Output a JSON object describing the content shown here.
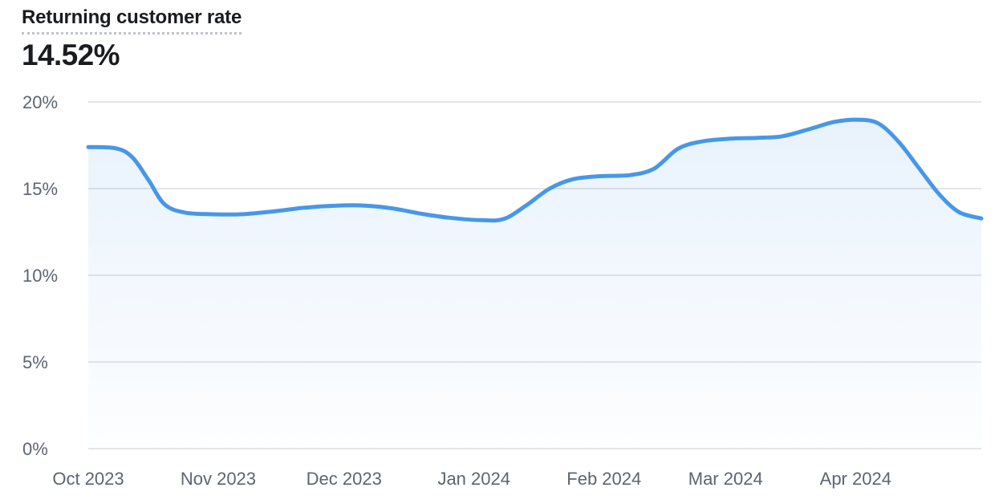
{
  "header": {
    "title": "Returning customer rate",
    "value": "14.52%"
  },
  "chart_data": {
    "type": "area",
    "title": "Returning customer rate",
    "current_value_label": "14.52%",
    "xlabel": "",
    "ylabel": "",
    "ylim": [
      0,
      20
    ],
    "grid": "horizontal-only",
    "legend": "none",
    "yticks": [
      {
        "value": 20,
        "label": "20%"
      },
      {
        "value": 15,
        "label": "15%"
      },
      {
        "value": 10,
        "label": "10%"
      },
      {
        "value": 5,
        "label": "5%"
      },
      {
        "value": 0,
        "label": "0%"
      }
    ],
    "xticks": [
      {
        "f": 0.0,
        "label": "Oct 2023"
      },
      {
        "f": 0.1455,
        "label": "Nov 2023"
      },
      {
        "f": 0.2864,
        "label": "Dec 2023"
      },
      {
        "f": 0.4319,
        "label": "Jan 2024"
      },
      {
        "f": 0.5775,
        "label": "Feb 2024"
      },
      {
        "f": 0.7136,
        "label": "Mar 2024"
      },
      {
        "f": 0.8592,
        "label": "Apr 2024"
      }
    ],
    "series": [
      {
        "name": "Returning customer rate",
        "unit": "%",
        "points": [
          [
            0.0,
            17.4
          ],
          [
            0.0314,
            17.32
          ],
          [
            0.0494,
            16.8
          ],
          [
            0.0674,
            15.5
          ],
          [
            0.0853,
            14.1
          ],
          [
            0.1078,
            13.62
          ],
          [
            0.1393,
            13.52
          ],
          [
            0.1707,
            13.52
          ],
          [
            0.2066,
            13.68
          ],
          [
            0.2426,
            13.9
          ],
          [
            0.2785,
            14.02
          ],
          [
            0.31,
            14.02
          ],
          [
            0.3414,
            13.85
          ],
          [
            0.3729,
            13.55
          ],
          [
            0.4043,
            13.32
          ],
          [
            0.4402,
            13.18
          ],
          [
            0.4654,
            13.25
          ],
          [
            0.4896,
            14.0
          ],
          [
            0.5166,
            15.0
          ],
          [
            0.5435,
            15.55
          ],
          [
            0.575,
            15.72
          ],
          [
            0.6065,
            15.78
          ],
          [
            0.6334,
            16.15
          ],
          [
            0.6604,
            17.3
          ],
          [
            0.6873,
            17.72
          ],
          [
            0.7188,
            17.88
          ],
          [
            0.7502,
            17.93
          ],
          [
            0.7772,
            18.02
          ],
          [
            0.8086,
            18.45
          ],
          [
            0.8356,
            18.85
          ],
          [
            0.8625,
            18.97
          ],
          [
            0.885,
            18.75
          ],
          [
            0.9074,
            17.7
          ],
          [
            0.9299,
            16.2
          ],
          [
            0.9524,
            14.7
          ],
          [
            0.9748,
            13.65
          ],
          [
            1.0,
            13.28
          ]
        ]
      }
    ],
    "colors": {
      "line": "#4797e8",
      "area_top": "rgba(71, 151, 232, 0.12)",
      "area_bottom": "rgba(71, 151, 232, 0.01)",
      "grid": "#e4e5e7",
      "axis_text": "#5d6470",
      "title_text": "#1a1c1f",
      "background": "#ffffff"
    }
  }
}
